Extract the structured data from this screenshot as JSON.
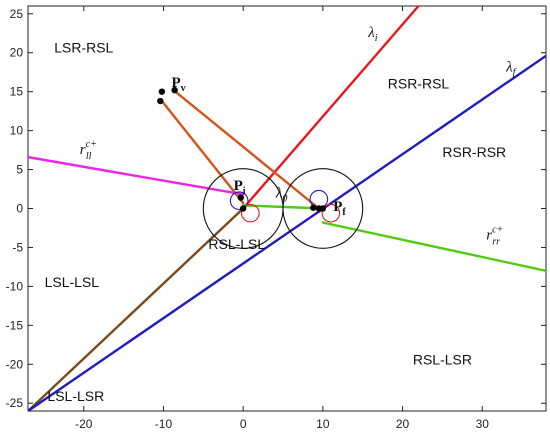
{
  "chart_data": {
    "type": "line",
    "xlim": [
      -27,
      38
    ],
    "ylim": [
      -26,
      26
    ],
    "x_ticks": [
      -20,
      -10,
      0,
      10,
      20,
      30
    ],
    "y_ticks": [
      -25,
      -20,
      -15,
      -10,
      -5,
      0,
      5,
      10,
      15,
      20,
      25
    ],
    "grid": false,
    "colors": {
      "lambda_i": "#e8191b",
      "lambda_f": "#1d1dc2",
      "r_ll": "#ef22e8",
      "r_rr": "#4fcb12",
      "path": "#d6521b",
      "dark_path": "#7a4a1a",
      "circle": "#111111",
      "small_circle_blue": "#1d1dc2",
      "small_circle_red": "#e8191b"
    },
    "lines": [
      {
        "name": "λi",
        "color_key": "lambda_i",
        "points": [
          [
            0,
            0
          ],
          [
            22,
            26
          ]
        ]
      },
      {
        "name": "λi-lower",
        "color_key": "dark_path",
        "points": [
          [
            0,
            0
          ],
          [
            -27,
            -26
          ]
        ]
      },
      {
        "name": "λf",
        "color_key": "lambda_f",
        "points": [
          [
            -27,
            -26
          ],
          [
            38,
            19.6
          ]
        ]
      },
      {
        "name": "rll",
        "color_key": "r_ll",
        "points": [
          [
            -27,
            6.6
          ],
          [
            0,
            1.8
          ]
        ]
      },
      {
        "name": "rrr",
        "color_key": "r_rr",
        "points": [
          [
            10,
            -1.8
          ],
          [
            38,
            -8
          ]
        ]
      },
      {
        "name": "green-mid",
        "color_key": "r_rr",
        "points": [
          [
            0,
            0.4
          ],
          [
            10,
            0.0
          ]
        ]
      },
      {
        "name": "path-a",
        "color_key": "path",
        "points": [
          [
            -10.2,
            13.8
          ],
          [
            0,
            0.7
          ]
        ]
      },
      {
        "name": "path-b",
        "color_key": "path",
        "points": [
          [
            -8.5,
            15.0
          ],
          [
            9.5,
            0.0
          ]
        ]
      }
    ],
    "circles": [
      {
        "cx": 0,
        "cy": 0,
        "r": 5,
        "color_key": "circle"
      },
      {
        "cx": 10,
        "cy": 0,
        "r": 5,
        "color_key": "circle"
      },
      {
        "cx": -0.5,
        "cy": 1.0,
        "r": 1.1,
        "color_key": "small_circle_blue"
      },
      {
        "cx": 0.9,
        "cy": -0.6,
        "r": 1.1,
        "color_key": "small_circle_red"
      },
      {
        "cx": 9.5,
        "cy": 1.2,
        "r": 1.1,
        "color_key": "small_circle_blue"
      },
      {
        "cx": 11.0,
        "cy": -0.6,
        "r": 1.1,
        "color_key": "small_circle_red"
      }
    ],
    "points": [
      {
        "x": -10.2,
        "y": 15.0
      },
      {
        "x": -8.6,
        "y": 15.2
      },
      {
        "x": -10.4,
        "y": 13.8
      },
      {
        "x": -0.3,
        "y": 1.4
      },
      {
        "x": 0,
        "y": 0
      },
      {
        "x": 8.8,
        "y": 0.1
      },
      {
        "x": 9.5,
        "y": 0.0
      },
      {
        "x": 10.0,
        "y": 0.0
      }
    ],
    "annotations": {
      "lambda_i": {
        "base": "λ",
        "sub": "i",
        "x": 15.7,
        "y": 22.0
      },
      "lambda_f": {
        "base": "λ",
        "sub": "f",
        "x": 33.0,
        "y": 17.6
      },
      "lambda_0": {
        "base": "λ",
        "sub": "0",
        "x": 4.1,
        "y": 1.4
      },
      "p_v": {
        "base": "P",
        "sub": "v",
        "x": -9.0,
        "y": 15.6
      },
      "p_i": {
        "base": "P",
        "sub": "i",
        "x": -1.2,
        "y": 2.4
      },
      "p_f": {
        "base": "P",
        "sub": "f",
        "x": 11.3,
        "y": -0.3
      },
      "r_ll": {
        "base": "r",
        "sub": "ll",
        "sup": "c+",
        "x": -20.5,
        "y": 7.0
      },
      "r_rr": {
        "base": "r",
        "sub": "rr",
        "sup": "c+",
        "x": 30.5,
        "y": -4.0
      }
    },
    "regions": [
      {
        "label": "LSR-RSL",
        "x": -20.0,
        "y": 20.0
      },
      {
        "label": "RSR-RSL",
        "x": 22.0,
        "y": 15.4
      },
      {
        "label": "RSR-RSR",
        "x": 29.0,
        "y": 6.6
      },
      {
        "label": "RSL-LSL",
        "x": -0.8,
        "y": -5.2
      },
      {
        "label": "LSL-LSL",
        "x": -21.5,
        "y": -10.1
      },
      {
        "label": "RSL-LSR",
        "x": 25.0,
        "y": -20.0
      },
      {
        "label": "LSL-LSR",
        "x": -21.0,
        "y": -24.7
      }
    ]
  }
}
